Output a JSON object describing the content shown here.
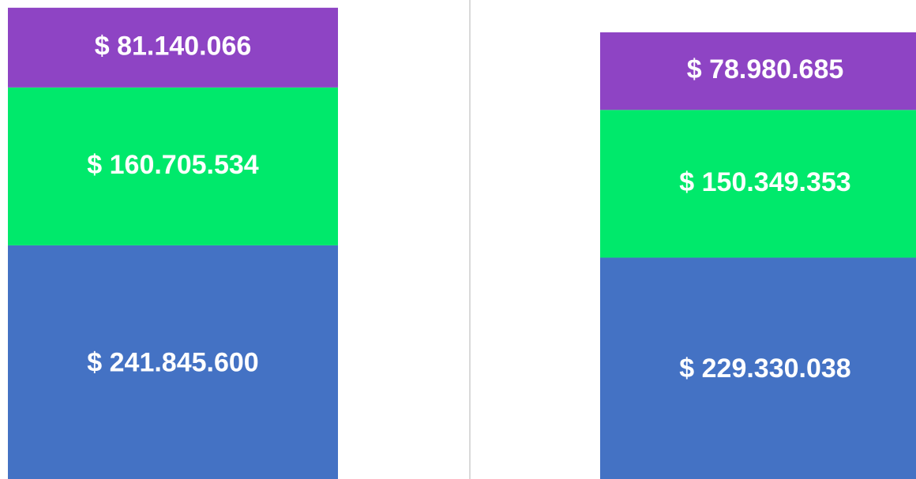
{
  "chart_data": {
    "type": "bar",
    "stacked": true,
    "categories": [
      null,
      null
    ],
    "series": [
      {
        "color": "#4472c4",
        "values": [
          241845600,
          229330038
        ],
        "value_labels": [
          "$ 241.845.600",
          "$ 229.330.038"
        ]
      },
      {
        "color": "#00e96b",
        "values": [
          160705534,
          150349353
        ],
        "value_labels": [
          "$ 160.705.534",
          "$ 150.349.353"
        ]
      },
      {
        "color": "#8e44c4",
        "values": [
          81140066,
          78980685
        ],
        "value_labels": [
          "$ 81.140.066",
          "$ 78.980.685"
        ]
      }
    ]
  }
}
